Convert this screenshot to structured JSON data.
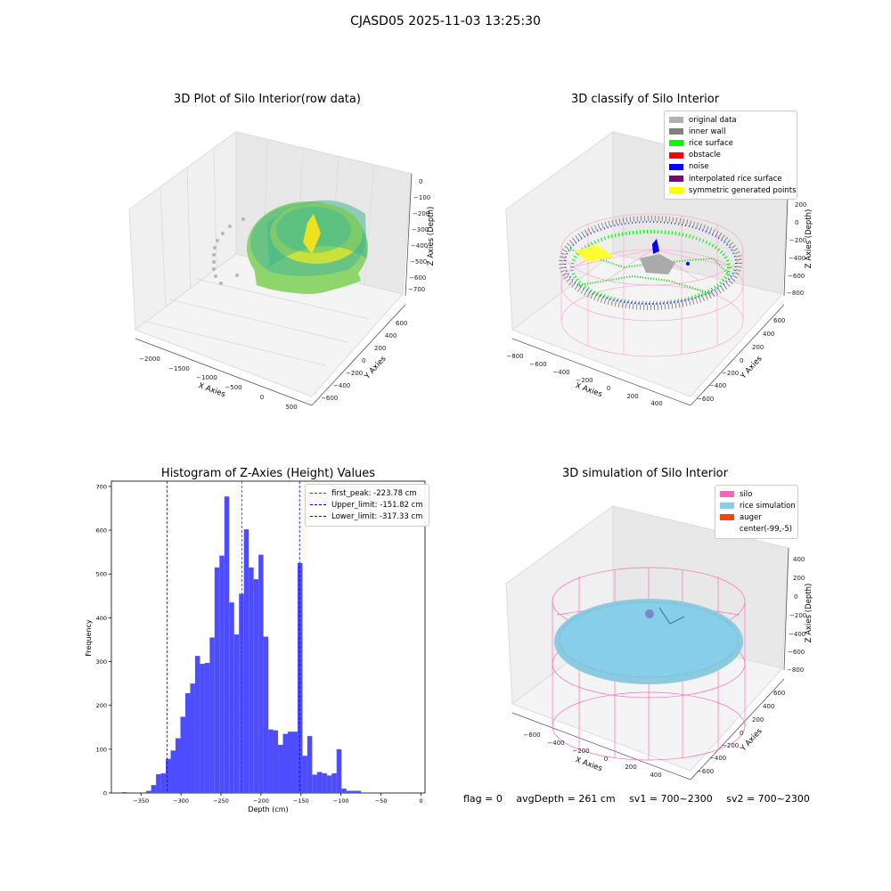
{
  "suptitle": "CJASD05 2025-11-03 13:25:30",
  "footer": {
    "flag": "flag = 0",
    "avg_depth": "avgDepth = 261 cm",
    "sv1": "sv1 = 700~2300",
    "sv2": "sv2 = 700~2300"
  },
  "colors": {
    "hist_bar": "#4d4dff",
    "peak_line": "#ff0000",
    "limit_line": "#0000ff",
    "original_data": "#b0b0b0",
    "inner_wall": "#808080",
    "rice_surface": "#00ff00",
    "obstacle": "#ff0000",
    "noise": "#0000ff",
    "interpolated_rice_surface": "#800080",
    "symmetric_generated_points": "#ffff00",
    "silo": "#ff69b4",
    "rice_simulation": "#87ceeb",
    "auger": "#ff4500"
  },
  "chart_data": [
    {
      "type": "scatter",
      "projection": "3d",
      "title": "3D Plot of Silo Interior(row data)",
      "xlabel": "X Axies",
      "ylabel": "Y Axies",
      "zlabel": "Z Axies (Depth)",
      "xticks": [
        "−2000",
        "−1500",
        "−1000",
        "−500",
        "0",
        "500"
      ],
      "yticks": [
        "600",
        "400",
        "200",
        "0",
        "−200",
        "−400",
        "−600"
      ],
      "zticks": [
        "0",
        "−100",
        "−200",
        "−300",
        "−400",
        "−500",
        "−600",
        "−700"
      ],
      "colormap": "viridis"
    },
    {
      "type": "scatter",
      "projection": "3d",
      "title": "3D classify of Silo Interior",
      "xlabel": "X Axies",
      "ylabel": "Y Axies",
      "zlabel": "Z Axies (Depth)",
      "xticks": [
        "−800",
        "−600",
        "−400",
        "−200",
        "0",
        "200",
        "400"
      ],
      "yticks": [
        "600",
        "400",
        "200",
        "0",
        "−200",
        "−400",
        "−600"
      ],
      "zticks": [
        "200",
        "0",
        "−200",
        "−400",
        "−600",
        "−800"
      ],
      "legend": [
        "original data",
        "inner wall",
        "rice surface",
        "obstacle",
        "noise",
        "interpolated rice surface",
        "symmetric generated points"
      ],
      "legend_position": "upper right"
    },
    {
      "type": "bar",
      "title": "Histogram of Z-Axies (Height) Values",
      "xlabel": "Depth (cm)",
      "ylabel": "Frequency",
      "xlim": [
        -387,
        5
      ],
      "ylim": [
        0,
        712
      ],
      "xticks": [
        -350,
        -300,
        -250,
        -200,
        -150,
        -100,
        -50,
        0
      ],
      "xtick_labels": [
        "−350",
        "−300",
        "−250",
        "−200",
        "−150",
        "−100",
        "−50",
        "0"
      ],
      "yticks": [
        0,
        100,
        200,
        300,
        400,
        500,
        600,
        700
      ],
      "bin_start": -380,
      "bin_width": 6.1,
      "values": [
        0,
        2,
        0,
        0,
        0,
        0,
        5,
        18,
        43,
        45,
        78,
        97,
        125,
        174,
        228,
        250,
        313,
        295,
        297,
        355,
        515,
        542,
        677,
        435,
        362,
        455,
        602,
        515,
        488,
        544,
        357,
        145,
        143,
        110,
        135,
        140,
        140,
        525,
        85,
        130,
        42,
        48,
        45,
        40,
        45,
        100,
        10,
        5,
        5,
        5
      ],
      "lines": [
        {
          "name": "first_peak: -223.78 cm",
          "x": -223.78,
          "style": "dashed",
          "color": "red"
        },
        {
          "name": "Upper_limit: -151.82 cm",
          "x": -151.82,
          "style": "dashed",
          "color": "blue"
        },
        {
          "name": "Lower_limit: -317.33 cm",
          "x": -317.33,
          "style": "dashed",
          "color": "blue"
        }
      ],
      "legend_position": "upper right"
    },
    {
      "type": "scatter",
      "projection": "3d",
      "title": "3D simulation of Silo Interior",
      "xlabel": "X Axies",
      "ylabel": "Y Axies",
      "zlabel": "Z Axies (Depth)",
      "xticks": [
        "−600",
        "−400",
        "−200",
        "0",
        "200",
        "400"
      ],
      "yticks": [
        "600",
        "400",
        "200",
        "0",
        "−200",
        "−400",
        "−600"
      ],
      "zticks": [
        "400",
        "200",
        "0",
        "−200",
        "−400",
        "−600",
        "−800"
      ],
      "legend": [
        "silo",
        "rice simulation",
        "auger",
        "center(-99,-5)"
      ],
      "legend_position": "upper right"
    }
  ]
}
